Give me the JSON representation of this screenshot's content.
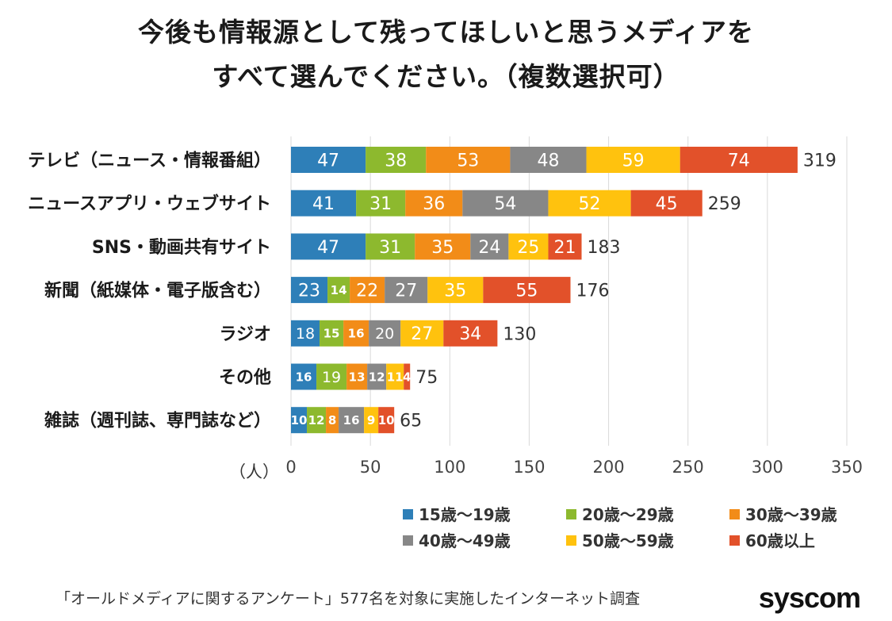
{
  "title_line1": "今後も情報源として残ってほしいと思うメディアを",
  "title_line2": "すべて選んでください。（複数選択可）",
  "source_text": "「オールドメディアに関するアンケート」577名を対象に実施したインターネット調査",
  "logo_text": "syscom",
  "chart_data": {
    "type": "bar",
    "orientation": "horizontal",
    "stacked": true,
    "title": "今後も情報源として残ってほしいと思うメディアをすべて選んでください。（複数選択可）",
    "xlabel": "（人）",
    "xlim": [
      0,
      350
    ],
    "xticks": [
      0,
      50,
      100,
      150,
      200,
      250,
      300,
      350
    ],
    "grid": true,
    "legend_position": "bottom-right",
    "categories": [
      "テレビ（ニュース・情報番組）",
      "ニュースアプリ・ウェブサイト",
      "SNS・動画共有サイト",
      "新聞（紙媒体・電子版含む）",
      "ラジオ",
      "その他",
      "雑誌（週刊誌、専門誌など）"
    ],
    "totals": [
      319,
      259,
      183,
      176,
      130,
      75,
      65
    ],
    "series": [
      {
        "name": "15歳〜19歳",
        "color": "#2e7fb8",
        "values": [
          47,
          41,
          47,
          23,
          18,
          16,
          10
        ]
      },
      {
        "name": "20歳〜29歳",
        "color": "#8db92e",
        "values": [
          38,
          31,
          31,
          14,
          15,
          19,
          12
        ]
      },
      {
        "name": "30歳〜39歳",
        "color": "#f28c18",
        "values": [
          53,
          36,
          35,
          22,
          16,
          13,
          8
        ]
      },
      {
        "name": "40歳〜49歳",
        "color": "#878787",
        "values": [
          48,
          54,
          24,
          27,
          20,
          12,
          16
        ]
      },
      {
        "name": "50歳〜59歳",
        "color": "#ffc20e",
        "values": [
          59,
          52,
          25,
          35,
          27,
          11,
          9
        ]
      },
      {
        "name": "60歳以上",
        "color": "#e2512a",
        "values": [
          74,
          45,
          21,
          55,
          34,
          4,
          10
        ]
      }
    ]
  }
}
